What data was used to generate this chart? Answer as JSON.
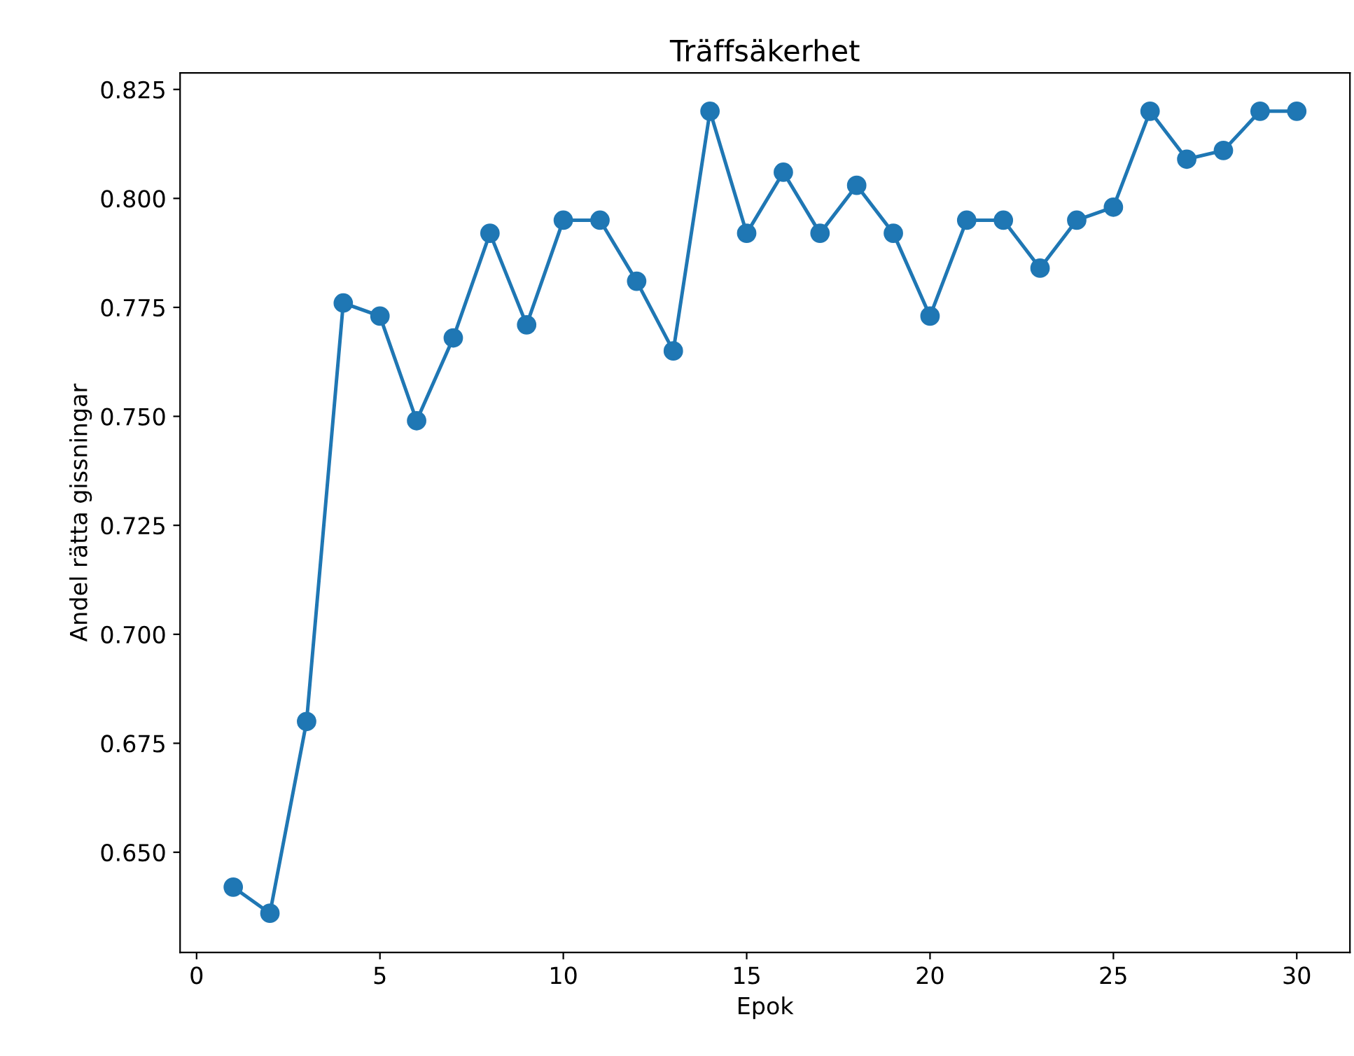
{
  "chart_data": {
    "type": "line",
    "title": "Träffsäkerhet",
    "xlabel": "Epok",
    "ylabel": "Andel rätta gissningar",
    "x": [
      1,
      2,
      3,
      4,
      5,
      6,
      7,
      8,
      9,
      10,
      11,
      12,
      13,
      14,
      15,
      16,
      17,
      18,
      19,
      20,
      21,
      22,
      23,
      24,
      25,
      26,
      27,
      28,
      29,
      30
    ],
    "series": [
      {
        "color": "#1f77b4",
        "values": [
          0.642,
          0.636,
          0.68,
          0.776,
          0.773,
          0.749,
          0.768,
          0.792,
          0.771,
          0.795,
          0.795,
          0.781,
          0.765,
          0.82,
          0.792,
          0.806,
          0.792,
          0.803,
          0.792,
          0.773,
          0.795,
          0.795,
          0.784,
          0.795,
          0.798,
          0.82,
          0.809,
          0.811,
          0.82,
          0.82
        ]
      }
    ],
    "xlim": [
      -0.45,
      31.45
    ],
    "xticks": [
      0,
      5,
      10,
      15,
      20,
      25,
      30
    ],
    "ylim": [
      0.627,
      0.8288
    ],
    "yticks": [
      {
        "value": 0.65,
        "label": "0.650"
      },
      {
        "value": 0.675,
        "label": "0.675"
      },
      {
        "value": 0.7,
        "label": "0.700"
      },
      {
        "value": 0.725,
        "label": "0.725"
      },
      {
        "value": 0.75,
        "label": "0.750"
      },
      {
        "value": 0.775,
        "label": "0.775"
      },
      {
        "value": 0.8,
        "label": "0.800"
      },
      {
        "value": 0.825,
        "label": "0.825"
      }
    ],
    "marker": "circle",
    "line_style": "solid",
    "grid": false
  }
}
